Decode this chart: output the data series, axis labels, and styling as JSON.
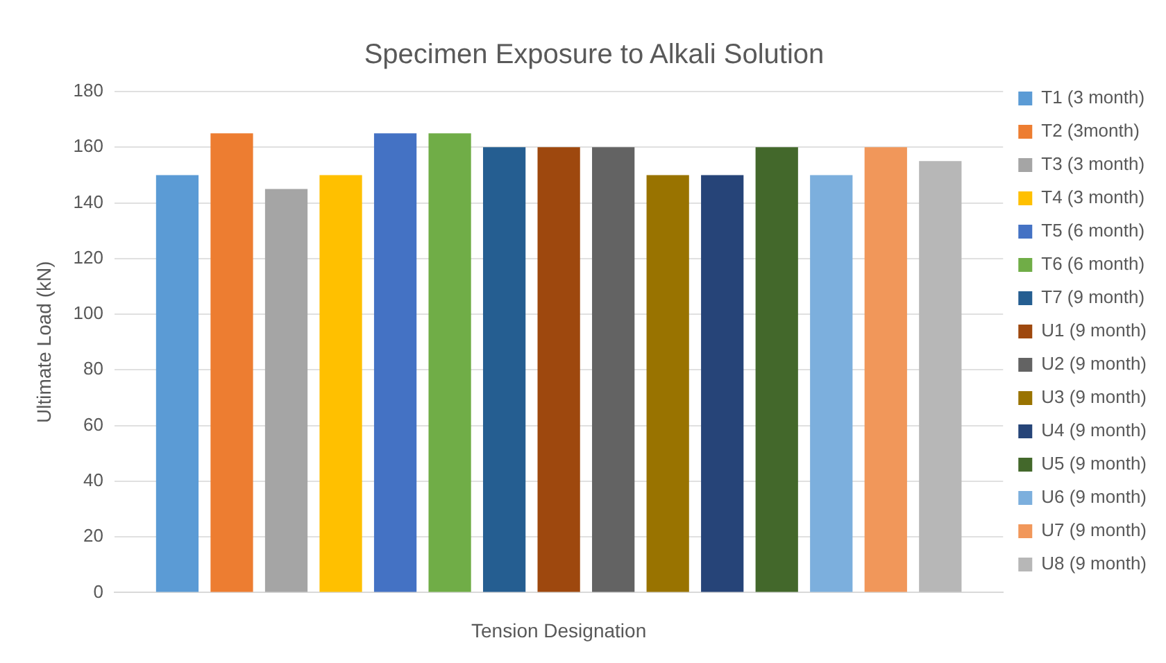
{
  "chart_data": {
    "type": "bar",
    "title": "Specimen Exposure to Alkali Solution",
    "xlabel": "Tension Designation",
    "ylabel": "Ultimate Load (kN)",
    "categories": [
      null
    ],
    "series": [
      {
        "name": "T1 (3 month)",
        "color": "#5b9bd5",
        "values": [
          150
        ]
      },
      {
        "name": "T2 (3month)",
        "color": "#ed7d31",
        "values": [
          165
        ]
      },
      {
        "name": "T3 (3 month)",
        "color": "#a5a5a5",
        "values": [
          145
        ]
      },
      {
        "name": "T4 (3 month)",
        "color": "#ffc000",
        "values": [
          150
        ]
      },
      {
        "name": "T5 (6 month)",
        "color": "#4472c4",
        "values": [
          165
        ]
      },
      {
        "name": "T6 (6 month)",
        "color": "#70ad47",
        "values": [
          165
        ]
      },
      {
        "name": "T7 (9 month)",
        "color": "#255e91",
        "values": [
          160
        ]
      },
      {
        "name": "U1 (9 month)",
        "color": "#9e480e",
        "values": [
          160
        ]
      },
      {
        "name": "U2 (9 month)",
        "color": "#636363",
        "values": [
          160
        ]
      },
      {
        "name": "U3 (9 month)",
        "color": "#997300",
        "values": [
          150
        ]
      },
      {
        "name": "U4 (9 month)",
        "color": "#264478",
        "values": [
          150
        ]
      },
      {
        "name": "U5 (9 month)",
        "color": "#43682b",
        "values": [
          160
        ]
      },
      {
        "name": "U6 (9 month)",
        "color": "#7cafdd",
        "values": [
          150
        ]
      },
      {
        "name": "U7 (9 month)",
        "color": "#f1975a",
        "values": [
          160
        ]
      },
      {
        "name": "U8 (9 month)",
        "color": "#b7b7b7",
        "values": [
          155
        ]
      }
    ],
    "ylim": [
      0,
      180
    ],
    "yticks": [
      0,
      20,
      40,
      60,
      80,
      100,
      120,
      140,
      160,
      180
    ],
    "grid": "y",
    "legend": "right"
  }
}
